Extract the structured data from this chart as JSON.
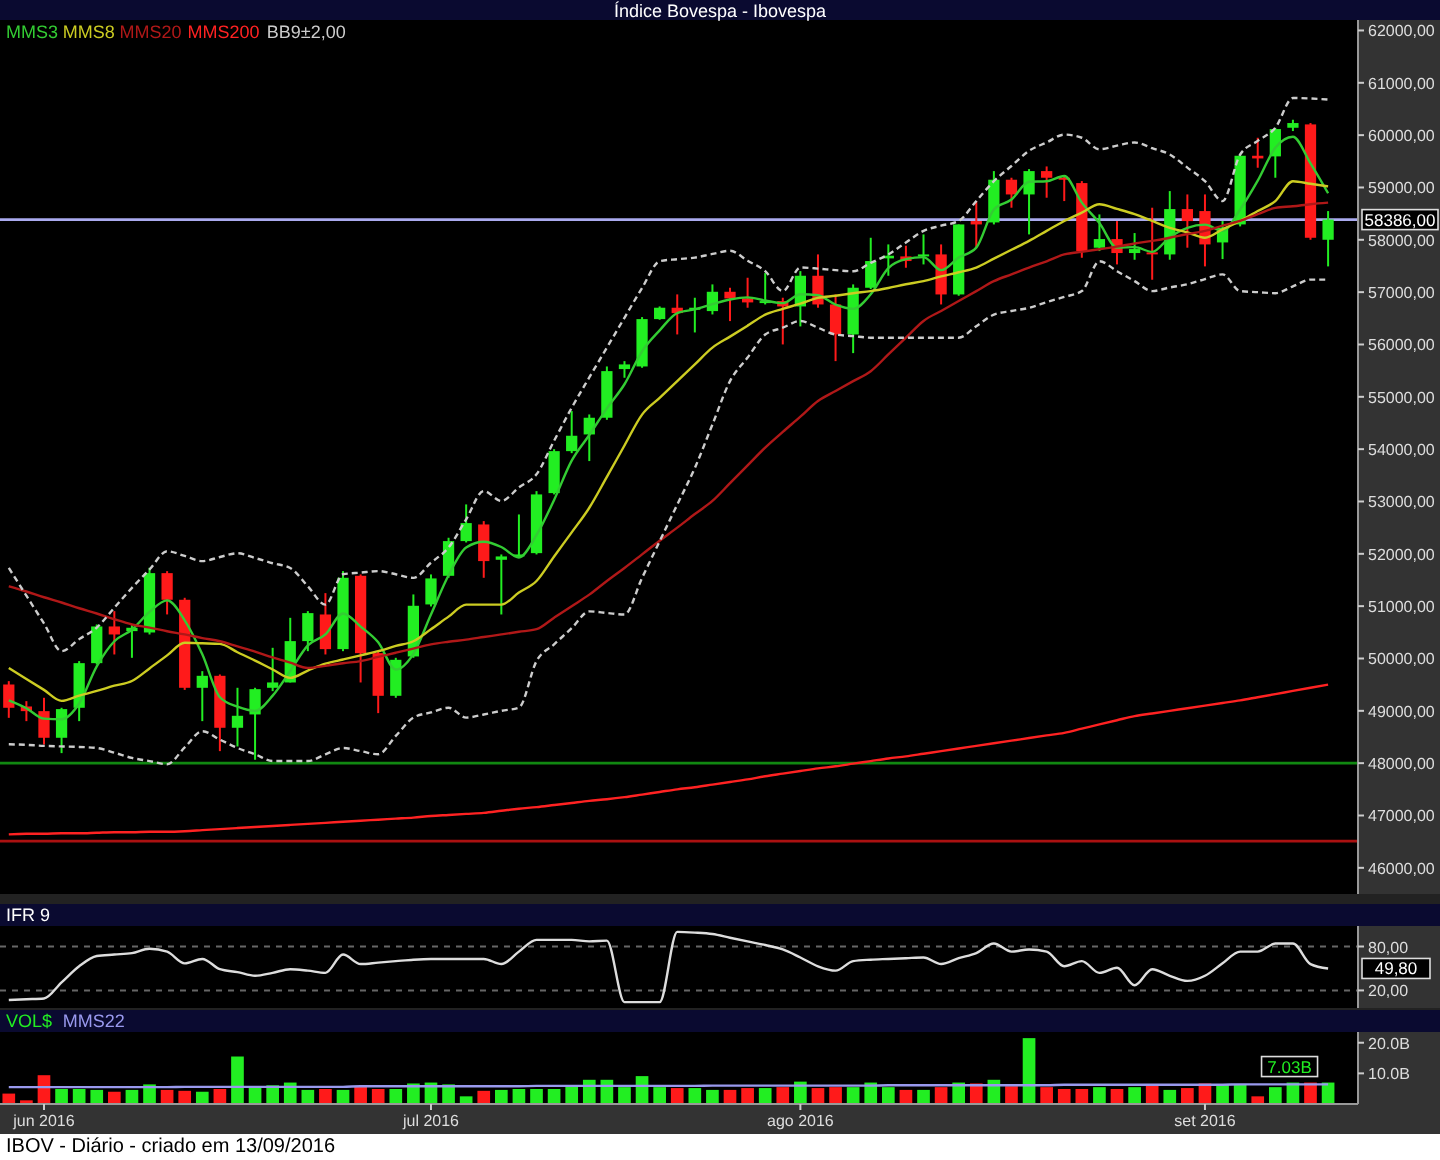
{
  "chart_data": [
    {
      "type": "candlestick",
      "title": "Índice Bovespa - Ibovespa",
      "legend": "top left",
      "tick_labels": "y",
      "categories": [
        null,
        null,
        null,
        null,
        null,
        null,
        null,
        null,
        null,
        null,
        null,
        null,
        null,
        null,
        null,
        null,
        null,
        null,
        null,
        null,
        null,
        null,
        null,
        null,
        null,
        null,
        null,
        null,
        null,
        null,
        null,
        null,
        null,
        null,
        null,
        null,
        null,
        null,
        null,
        null,
        null,
        null,
        null,
        null,
        null,
        null,
        null,
        null,
        null,
        null,
        null,
        null,
        null,
        null,
        null,
        null,
        null,
        null,
        null,
        null,
        null,
        null,
        null,
        null,
        null,
        null,
        null,
        null,
        null,
        null,
        null,
        null,
        null,
        null,
        null,
        null
      ],
      "ohlc": [
        [
          49503,
          49567,
          48866,
          49058
        ],
        [
          49083,
          49185,
          48803,
          48994
        ],
        [
          48994,
          49249,
          48357,
          48485
        ],
        [
          48485,
          49058,
          48192,
          49033
        ],
        [
          49058,
          49950,
          48803,
          49911
        ],
        [
          49911,
          50650,
          49886,
          50612
        ],
        [
          50612,
          50905,
          50077,
          50459
        ],
        [
          50523,
          50650,
          50013,
          50587
        ],
        [
          50497,
          51733,
          50459,
          51631
        ],
        [
          51631,
          51669,
          50842,
          51122
        ],
        [
          51122,
          51160,
          49400,
          49440
        ],
        [
          49440,
          49758,
          48803,
          49669
        ],
        [
          49669,
          49695,
          48230,
          48676
        ],
        [
          48676,
          49440,
          48319,
          48905
        ],
        [
          48931,
          49440,
          48065,
          49414
        ],
        [
          49440,
          50204,
          49376,
          49542
        ],
        [
          49542,
          50777,
          49542,
          50332
        ],
        [
          50332,
          50905,
          50140,
          50867
        ],
        [
          50841,
          51249,
          50077,
          50179
        ],
        [
          50179,
          51669,
          50140,
          51542
        ],
        [
          51580,
          51606,
          49542,
          50102
        ],
        [
          50102,
          50140,
          48956,
          49287
        ],
        [
          49287,
          50013,
          49249,
          49975
        ],
        [
          50039,
          51224,
          50013,
          51007
        ],
        [
          51033,
          51606,
          50994,
          51530
        ],
        [
          51580,
          52307,
          51542,
          52243
        ],
        [
          52243,
          52944,
          52217,
          52587
        ],
        [
          52561,
          52625,
          51542,
          51861
        ],
        [
          51886,
          51988,
          50841,
          51950
        ],
        [
          51950,
          52752,
          51924,
          51988
        ],
        [
          52013,
          53198,
          51988,
          53135
        ],
        [
          53160,
          54000,
          53135,
          53962
        ],
        [
          53962,
          54727,
          53924,
          54256
        ],
        [
          54281,
          54663,
          53772,
          54600
        ],
        [
          54600,
          55580,
          54561,
          55491
        ],
        [
          55530,
          55682,
          55364,
          55619
        ],
        [
          55580,
          56523,
          55555,
          56485
        ],
        [
          56485,
          56727,
          56472,
          56702
        ],
        [
          56702,
          56957,
          56192,
          56600
        ],
        [
          56663,
          56893,
          56230,
          56702
        ],
        [
          56638,
          57148,
          56574,
          57007
        ],
        [
          57007,
          57084,
          56447,
          56880
        ],
        [
          56880,
          57275,
          56702,
          56804
        ],
        [
          56820,
          57364,
          56765,
          56829
        ],
        [
          56829,
          56893,
          56001,
          56727
        ],
        [
          56727,
          57402,
          56345,
          57313
        ],
        [
          57313,
          57721,
          56702,
          56765
        ],
        [
          56765,
          56957,
          55682,
          56192
        ],
        [
          56192,
          57148,
          55835,
          57084
        ],
        [
          57084,
          58039,
          57058,
          57594
        ],
        [
          57645,
          57912,
          57313,
          57696
        ],
        [
          57683,
          57887,
          57466,
          57594
        ],
        [
          57683,
          58103,
          57530,
          57721
        ],
        [
          57721,
          57912,
          56765,
          56956
        ],
        [
          56956,
          58294,
          56931,
          58294
        ],
        [
          58358,
          58740,
          57849,
          58294
        ],
        [
          58332,
          59313,
          58294,
          59148
        ],
        [
          59148,
          59186,
          58613,
          58867
        ],
        [
          58867,
          59351,
          58103,
          59313
        ],
        [
          59313,
          59402,
          58804,
          59186
        ],
        [
          59186,
          59224,
          58740,
          59148
        ],
        [
          59084,
          59122,
          57657,
          57785
        ],
        [
          57849,
          58485,
          57785,
          58014
        ],
        [
          58014,
          58358,
          57530,
          57747
        ],
        [
          57747,
          58129,
          57619,
          57823
        ],
        [
          57760,
          58613,
          57237,
          57747
        ],
        [
          57721,
          58931,
          57619,
          58587
        ],
        [
          58587,
          58867,
          57849,
          58358
        ],
        [
          58549,
          58867,
          57492,
          57912
        ],
        [
          57950,
          58358,
          57632,
          58231
        ],
        [
          58294,
          59632,
          58256,
          59606
        ],
        [
          59606,
          59950,
          59377,
          59555
        ],
        [
          59594,
          60141,
          59186,
          60116
        ],
        [
          60141,
          60294,
          60078,
          60231
        ],
        [
          60205,
          60231,
          58001,
          58039
        ],
        [
          58001,
          58549,
          57492,
          58386
        ]
      ],
      "series": [
        {
          "name": "MMS3",
          "type": "line",
          "color": "#33cc33",
          "values": [
            49200,
            49050,
            48850,
            48840,
            49140,
            49850,
            50330,
            50550,
            50890,
            51110,
            50730,
            50080,
            49260,
            49080,
            49000,
            49290,
            49760,
            50250,
            50460,
            50860,
            50610,
            50310,
            49790,
            50090,
            50840,
            51590,
            52120,
            52230,
            52130,
            51930,
            52360,
            53030,
            53780,
            54270,
            54780,
            55240,
            55870,
            56270,
            56600,
            56670,
            56770,
            56860,
            56900,
            56840,
            56790,
            56960,
            56940,
            56760,
            56680,
            56960,
            57460,
            57630,
            57670,
            57420,
            57660,
            57850,
            58580,
            58770,
            59110,
            59120,
            59220,
            58710,
            58320,
            57850,
            57860,
            57770,
            58050,
            58230,
            58290,
            58170,
            58580,
            59130,
            59760,
            59970,
            59460,
            58890
          ]
        },
        {
          "name": "MMS8",
          "type": "line",
          "color": "#cccc22",
          "values": [
            49820,
            49610,
            49400,
            49190,
            49290,
            49380,
            49480,
            49570,
            49810,
            50060,
            50300,
            50290,
            50280,
            50120,
            49960,
            49790,
            49630,
            49770,
            49900,
            49980,
            50060,
            50140,
            50240,
            50330,
            50560,
            50800,
            51030,
            51030,
            51030,
            51260,
            51480,
            51950,
            52410,
            52880,
            53470,
            54070,
            54660,
            54980,
            55300,
            55620,
            55940,
            56150,
            56360,
            56570,
            56680,
            56780,
            56890,
            56930,
            56980,
            57020,
            57080,
            57150,
            57210,
            57300,
            57380,
            57470,
            57640,
            57810,
            57980,
            58170,
            58360,
            58520,
            58680,
            58590,
            58490,
            58360,
            58230,
            58140,
            58040,
            58200,
            58360,
            58550,
            58740,
            59120,
            59070,
            59020
          ]
        },
        {
          "name": "MMS20",
          "type": "line",
          "color": "#b01818",
          "values": [
            51380,
            51280,
            51170,
            51070,
            50960,
            50860,
            50750,
            50650,
            50590,
            50520,
            50460,
            50390,
            50330,
            50230,
            50130,
            50020,
            49920,
            49820,
            49860,
            49910,
            49950,
            50030,
            50110,
            50190,
            50270,
            50320,
            50360,
            50410,
            50460,
            50510,
            50560,
            50780,
            51000,
            51220,
            51480,
            51730,
            51990,
            52250,
            52500,
            52760,
            53010,
            53350,
            53690,
            54030,
            54330,
            54620,
            54920,
            55110,
            55300,
            55490,
            55810,
            56130,
            56450,
            56640,
            56830,
            57020,
            57210,
            57340,
            57470,
            57590,
            57720,
            57770,
            57820,
            57870,
            57930,
            57980,
            58040,
            58110,
            58170,
            58270,
            58360,
            58490,
            58610,
            58640,
            58680,
            58710
          ]
        },
        {
          "name": "MMS200",
          "type": "line",
          "color": "#ff2222",
          "values": [
            46640,
            46650,
            46650,
            46660,
            46660,
            46670,
            46680,
            46680,
            46690,
            46690,
            46700,
            46720,
            46740,
            46760,
            46780,
            46800,
            46820,
            46840,
            46860,
            46880,
            46900,
            46920,
            46940,
            46960,
            46990,
            47010,
            47030,
            47050,
            47090,
            47130,
            47160,
            47200,
            47240,
            47280,
            47310,
            47350,
            47400,
            47450,
            47500,
            47540,
            47590,
            47640,
            47690,
            47750,
            47800,
            47850,
            47900,
            47940,
            47990,
            48040,
            48090,
            48130,
            48180,
            48230,
            48280,
            48330,
            48380,
            48430,
            48480,
            48530,
            48580,
            48660,
            48740,
            48820,
            48900,
            48950,
            49000,
            49050,
            49100,
            49150,
            49200,
            49260,
            49320,
            49380,
            49440,
            49500
          ]
        },
        {
          "name": "BB9±2,00",
          "type": "line",
          "line_style": "dashed",
          "color": "#cccccc",
          "values": [
            51730,
            51200,
            50670,
            50140,
            50370,
            50590,
            50970,
            51350,
            51700,
            52050,
            51960,
            51860,
            51940,
            52010,
            51920,
            51820,
            51730,
            51380,
            51030,
            51610,
            51640,
            51670,
            51610,
            51540,
            51830,
            52120,
            52660,
            53200,
            53010,
            53270,
            53520,
            54160,
            54790,
            55370,
            55940,
            56510,
            57080,
            57590,
            57630,
            57660,
            57730,
            57790,
            57600,
            57400,
            57020,
            57470,
            57450,
            57420,
            57400,
            57560,
            57720,
            57950,
            58170,
            58270,
            58360,
            58740,
            59120,
            59410,
            59700,
            59860,
            60010,
            59950,
            59730,
            59800,
            59860,
            59750,
            59630,
            59380,
            59120,
            58740,
            59630,
            59890,
            60140,
            60710,
            60700,
            60680
          ]
        },
        {
          "type": "line",
          "line_style": "dashed",
          "color": "#cccccc",
          "values": [
            48360,
            48350,
            48330,
            48320,
            48310,
            48290,
            48200,
            48100,
            48040,
            47980,
            48300,
            48610,
            48450,
            48290,
            48170,
            48040,
            48040,
            48040,
            48170,
            48290,
            48230,
            48170,
            48520,
            48870,
            48970,
            49060,
            48870,
            48930,
            49000,
            49060,
            49950,
            50270,
            50580,
            50900,
            50870,
            50840,
            51540,
            52240,
            52940,
            53640,
            54470,
            55300,
            55750,
            56190,
            56320,
            56450,
            56320,
            56190,
            56160,
            56130,
            56130,
            56130,
            56130,
            56130,
            56130,
            56350,
            56570,
            56640,
            56700,
            56810,
            56910,
            57020,
            57590,
            57400,
            57210,
            57020,
            57090,
            57150,
            57250,
            57340,
            57020,
            57000,
            56980,
            57110,
            57240,
            57240
          ]
        }
      ],
      "ylim": [
        45500,
        62200
      ],
      "yticks": [
        {
          "value": 46000,
          "label": "46000,00"
        },
        {
          "value": 47000,
          "label": "47000,00"
        },
        {
          "value": 48000,
          "label": "48000,00"
        },
        {
          "value": 49000,
          "label": "49000,00"
        },
        {
          "value": 50000,
          "label": "50000,00"
        },
        {
          "value": 51000,
          "label": "51000,00"
        },
        {
          "value": 52000,
          "label": "52000,00"
        },
        {
          "value": 53000,
          "label": "53000,00"
        },
        {
          "value": 54000,
          "label": "54000,00"
        },
        {
          "value": 55000,
          "label": "55000,00"
        },
        {
          "value": 56000,
          "label": "56000,00"
        },
        {
          "value": 57000,
          "label": "57000,00"
        },
        {
          "value": 58000,
          "label": "58000,00"
        },
        {
          "value": 59000,
          "label": "59000,00"
        },
        {
          "value": 60000,
          "label": "60000,00"
        },
        {
          "value": 61000,
          "label": "61000,00"
        },
        {
          "value": 62000,
          "label": "62000,00"
        }
      ],
      "ref_lines": [
        {
          "axis": "y",
          "value": 58386,
          "label": "58386,00",
          "color": "#aaaaee"
        },
        {
          "axis": "y",
          "value": 48000,
          "color": "#118811"
        },
        {
          "axis": "y",
          "value": 46510,
          "color": "#aa1111"
        }
      ]
    },
    {
      "type": "line",
      "title": "IFR 9",
      "tick_labels": "y",
      "grid": "y",
      "categories": [
        null,
        null,
        null,
        null,
        null,
        null,
        null,
        null,
        null,
        null,
        null,
        null,
        null,
        null,
        null,
        null,
        null,
        null,
        null,
        null,
        null,
        null,
        null,
        null,
        null,
        null,
        null,
        null,
        null,
        null,
        null,
        null,
        null,
        null,
        null,
        null,
        null,
        null,
        null,
        null,
        null,
        null,
        null,
        null,
        null,
        null,
        null,
        null,
        null,
        null,
        null,
        null,
        null,
        null,
        null,
        null,
        null,
        null,
        null,
        null,
        null,
        null,
        null,
        null,
        null,
        null,
        null,
        null,
        null,
        null,
        null,
        null,
        null,
        null,
        null,
        null
      ],
      "series": [
        {
          "color": "#dddddd",
          "values": [
            7,
            8,
            9,
            31,
            53,
            67,
            69,
            71,
            77,
            73,
            57,
            63,
            49,
            45,
            40,
            44,
            49,
            47,
            44,
            69,
            56,
            58,
            60,
            62,
            63,
            63,
            63,
            63,
            56,
            73,
            89,
            89,
            89,
            87,
            88,
            4,
            4,
            4,
            100,
            99,
            97,
            92,
            87,
            82,
            76,
            65,
            53,
            47,
            60,
            62,
            63,
            64,
            65,
            56,
            64,
            71,
            84,
            73,
            76,
            73,
            53,
            60,
            44,
            51,
            27,
            49,
            40,
            33,
            40,
            57,
            73,
            73,
            84,
            84,
            56,
            50
          ]
        }
      ],
      "ylim": [
        -4,
        108
      ],
      "yticks": [
        {
          "value": 80,
          "label": "80,00"
        },
        {
          "value": 20,
          "label": "20,00"
        }
      ],
      "annotations": [
        {
          "text": "49,80",
          "y": 50
        }
      ]
    },
    {
      "type": "bar",
      "legend": "top left",
      "categories": [
        null,
        null,
        "jun 2016",
        null,
        null,
        null,
        null,
        null,
        null,
        null,
        null,
        null,
        null,
        null,
        null,
        null,
        null,
        null,
        null,
        null,
        null,
        null,
        null,
        null,
        "jul 2016",
        null,
        null,
        null,
        null,
        null,
        null,
        null,
        null,
        null,
        null,
        null,
        null,
        null,
        null,
        null,
        null,
        null,
        null,
        null,
        null,
        "ago 2016",
        null,
        null,
        null,
        null,
        null,
        null,
        null,
        null,
        null,
        null,
        null,
        null,
        null,
        null,
        null,
        null,
        null,
        null,
        null,
        null,
        null,
        null,
        "set 2016",
        null,
        null,
        null,
        null,
        null,
        null,
        null
      ],
      "series": [
        {
          "name": "VOL$",
          "type": "bar",
          "color": "#22ee22",
          "colors": [
            "#ff1a1a",
            "#ff1a1a",
            "#ff1a1a",
            "#22ee22",
            "#22ee22",
            "#22ee22",
            "#ff1a1a",
            "#22ee22",
            "#22ee22",
            "#ff1a1a",
            "#ff1a1a",
            "#22ee22",
            "#ff1a1a",
            "#22ee22",
            "#22ee22",
            "#22ee22",
            "#22ee22",
            "#22ee22",
            "#ff1a1a",
            "#22ee22",
            "#ff1a1a",
            "#ff1a1a",
            "#22ee22",
            "#22ee22",
            "#22ee22",
            "#22ee22",
            "#22ee22",
            "#ff1a1a",
            "#22ee22",
            "#22ee22",
            "#22ee22",
            "#22ee22",
            "#22ee22",
            "#22ee22",
            "#22ee22",
            "#22ee22",
            "#22ee22",
            "#22ee22",
            "#ff1a1a",
            "#22ee22",
            "#22ee22",
            "#ff1a1a",
            "#ff1a1a",
            "#22ee22",
            "#ff1a1a",
            "#22ee22",
            "#ff1a1a",
            "#ff1a1a",
            "#22ee22",
            "#22ee22",
            "#22ee22",
            "#ff1a1a",
            "#22ee22",
            "#ff1a1a",
            "#22ee22",
            "#ff1a1a",
            "#22ee22",
            "#ff1a1a",
            "#22ee22",
            "#ff1a1a",
            "#ff1a1a",
            "#ff1a1a",
            "#22ee22",
            "#ff1a1a",
            "#22ee22",
            "#ff1a1a",
            "#22ee22",
            "#ff1a1a",
            "#ff1a1a",
            "#22ee22",
            "#22ee22",
            "#ff1a1a",
            "#22ee22",
            "#22ee22",
            "#ff1a1a",
            "#22ee22"
          ],
          "values": [
            3.4,
            1.2,
            9.4,
            4.9,
            4.9,
            4.6,
            4.0,
            4.6,
            6.4,
            4.6,
            4.3,
            4.0,
            4.9,
            15.5,
            5.5,
            6.1,
            7.0,
            4.6,
            4.9,
            4.6,
            5.8,
            4.9,
            4.9,
            6.7,
            7.0,
            6.4,
            2.5,
            4.3,
            4.6,
            4.9,
            4.9,
            4.9,
            5.8,
            7.9,
            7.9,
            5.5,
            9.1,
            5.5,
            5.2,
            5.2,
            4.6,
            4.6,
            5.2,
            5.2,
            5.5,
            7.3,
            5.2,
            5.5,
            5.5,
            7.0,
            5.5,
            4.6,
            4.6,
            5.5,
            7.0,
            6.7,
            7.9,
            5.8,
            21.5,
            5.5,
            4.9,
            4.9,
            5.5,
            4.9,
            5.5,
            6.1,
            4.6,
            5.2,
            6.7,
            6.4,
            6.4,
            2.5,
            5.5,
            7.0,
            7.0,
            7.0
          ]
        },
        {
          "name": "MMS22",
          "type": "line",
          "color": "#9999ee",
          "values": [
            5.5,
            5.5,
            5.5,
            5.5,
            5.5,
            5.5,
            5.5,
            5.5,
            5.5,
            5.5,
            5.6,
            5.6,
            5.6,
            5.6,
            5.6,
            5.6,
            5.6,
            5.6,
            5.6,
            5.6,
            5.8,
            5.8,
            5.8,
            5.8,
            5.8,
            5.8,
            5.8,
            5.8,
            5.8,
            5.8,
            5.9,
            5.9,
            5.9,
            5.9,
            5.9,
            5.9,
            5.9,
            5.9,
            5.9,
            5.9,
            6.0,
            6.0,
            6.0,
            6.0,
            6.0,
            6.0,
            6.0,
            6.0,
            6.0,
            6.0,
            6.1,
            6.1,
            6.1,
            6.1,
            6.1,
            6.1,
            6.1,
            6.1,
            6.1,
            6.1,
            6.3,
            6.3,
            6.3,
            6.3,
            6.3,
            6.3,
            6.3,
            6.3,
            6.3,
            6.3,
            6.4,
            6.4,
            6.4,
            6.4,
            6.4,
            6.4
          ]
        }
      ],
      "ylim": [
        0,
        23.5
      ],
      "yticks": [
        {
          "value": 20,
          "label": "20.0B"
        },
        {
          "value": 10,
          "label": "10.0B"
        }
      ],
      "annotations": [
        {
          "text": "7.03B",
          "y": 7.0
        },
        "IBOV - Diário - criado em 13/09/2016"
      ]
    }
  ]
}
